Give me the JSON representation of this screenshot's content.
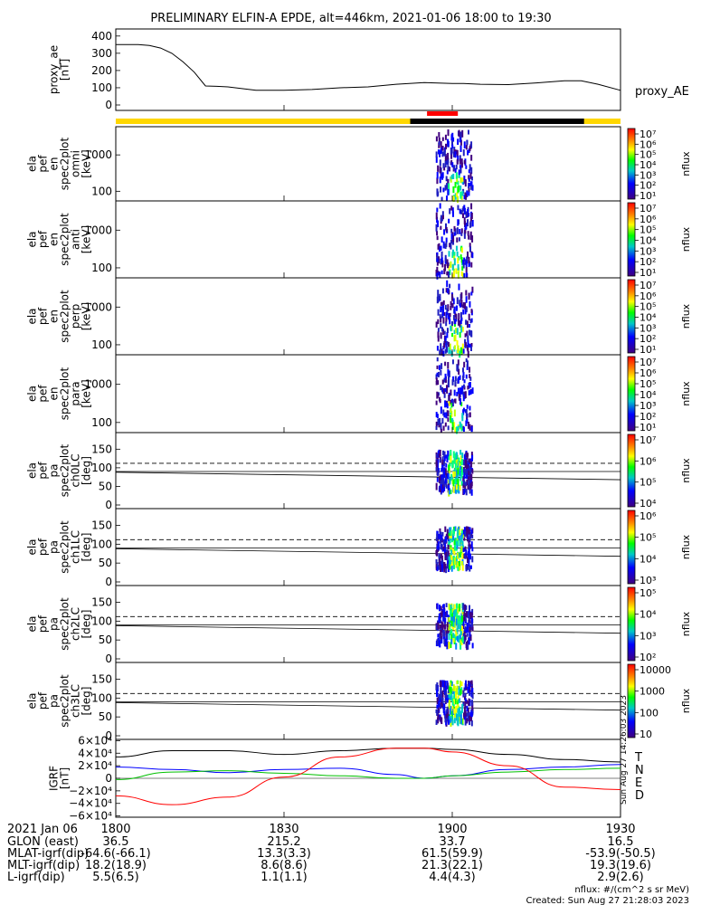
{
  "title": "PRELIMINARY ELFIN-A EPDE, alt=446km, 2021-01-06 18:00 to 19:30",
  "colors": {
    "yellow_bar": "#ffd700",
    "black_bar": "#000000",
    "red_bar": "#ff0000",
    "T": "#000000",
    "N": "#0000ff",
    "E": "#00c000",
    "D": "#ff0000"
  },
  "chart_data": [
    {
      "id": "proxy_ae",
      "type": "line",
      "ylabel": "proxy_ae\n[nT]",
      "series_label": "proxy_AE",
      "yticks": [
        "400",
        "300",
        "200",
        "100",
        "0"
      ],
      "ylim": [
        0,
        420
      ],
      "x_minutes": [
        0,
        2,
        4,
        6,
        8,
        10,
        12,
        14,
        16,
        18,
        20,
        25,
        30,
        35,
        40,
        45,
        50,
        55,
        60,
        62,
        65,
        70,
        75,
        80,
        83,
        86,
        90
      ],
      "values": [
        350,
        350,
        350,
        345,
        330,
        300,
        250,
        190,
        110,
        108,
        105,
        85,
        85,
        90,
        100,
        105,
        120,
        130,
        125,
        125,
        120,
        118,
        128,
        140,
        140,
        120,
        85
      ]
    },
    {
      "id": "spec_omni",
      "type": "heatmap",
      "ylabel": "ela\npef\nen\nspec2plot\nomni\n[keV]",
      "yticks": [
        "1000",
        "100"
      ],
      "colorbar": {
        "label": "nflux",
        "ticks": [
          "10⁷",
          "10⁶",
          "10⁵",
          "10⁴",
          "10³",
          "10²",
          "10¹"
        ]
      }
    },
    {
      "id": "spec_anti",
      "type": "heatmap",
      "ylabel": "ela\npef\nen\nspec2plot\nanti\n[keV]",
      "yticks": [
        "1000",
        "100"
      ],
      "colorbar": {
        "label": "nflux",
        "ticks": [
          "10⁷",
          "10⁶",
          "10⁵",
          "10⁴",
          "10³",
          "10²",
          "10¹"
        ]
      }
    },
    {
      "id": "spec_perp",
      "type": "heatmap",
      "ylabel": "ela\npef\nen\nspec2plot\nperp\n[keV]",
      "yticks": [
        "1000",
        "100"
      ],
      "colorbar": {
        "label": "nflux",
        "ticks": [
          "10⁷",
          "10⁶",
          "10⁵",
          "10⁴",
          "10³",
          "10²",
          "10¹"
        ]
      }
    },
    {
      "id": "spec_para",
      "type": "heatmap",
      "ylabel": "ela\npef\nen\nspec2plot\npara\n[keV]",
      "yticks": [
        "1000",
        "100"
      ],
      "colorbar": {
        "label": "nflux",
        "ticks": [
          "10⁷",
          "10⁶",
          "10⁵",
          "10⁴",
          "10³",
          "10²",
          "10¹"
        ]
      }
    },
    {
      "id": "pa_ch0",
      "type": "heatmap",
      "ylabel": "ela\npef\npa\nspec2plot\nch0LC\n[deg]",
      "yticks": [
        "150",
        "100",
        "50",
        "0"
      ],
      "colorbar": {
        "label": "nflux",
        "ticks": [
          "10⁷",
          "10⁶",
          "10⁵",
          "10⁴"
        ]
      }
    },
    {
      "id": "pa_ch1",
      "type": "heatmap",
      "ylabel": "ela\npef\npa\nspec2plot\nch1LC\n[deg]",
      "yticks": [
        "150",
        "100",
        "50",
        "0"
      ],
      "colorbar": {
        "label": "nflux",
        "ticks": [
          "10⁶",
          "10⁵",
          "10⁴",
          "10³"
        ]
      }
    },
    {
      "id": "pa_ch2",
      "type": "heatmap",
      "ylabel": "ela\npef\npa\nspec2plot\nch2LC\n[deg]",
      "yticks": [
        "150",
        "100",
        "50",
        "0"
      ],
      "colorbar": {
        "label": "nflux",
        "ticks": [
          "10⁵",
          "10⁴",
          "10³",
          "10²"
        ]
      }
    },
    {
      "id": "pa_ch3",
      "type": "heatmap",
      "ylabel": "ela\npef\npa\nspec2plot\nch3LC\n[deg]",
      "yticks": [
        "150",
        "100",
        "50",
        "0"
      ],
      "colorbar": {
        "label": "nflux",
        "ticks": [
          "10000",
          "1000",
          "100",
          "10"
        ]
      }
    },
    {
      "id": "igrf",
      "type": "line",
      "ylabel": "IGRF\n[nT]",
      "yticks": [
        "6×10⁴",
        "4×10⁴",
        "2×10⁴",
        "0",
        "−2×10⁴",
        "−4×10⁴",
        "−6×10⁴"
      ],
      "ylim": [
        -62000,
        62000
      ],
      "legend": [
        "T",
        "N",
        "E",
        "D"
      ],
      "stamp": "Sun Aug 27 14:26:03 2023",
      "x_minutes": [
        0,
        10,
        20,
        30,
        40,
        50,
        55,
        60,
        70,
        80,
        90
      ],
      "series": [
        {
          "name": "T",
          "values": [
            34000,
            44000,
            44000,
            38000,
            44000,
            48000,
            48000,
            46000,
            38000,
            30000,
            26000
          ]
        },
        {
          "name": "N",
          "values": [
            18000,
            14000,
            9000,
            14000,
            16000,
            6000,
            0,
            4000,
            14000,
            18000,
            22000
          ]
        },
        {
          "name": "E",
          "values": [
            -2000,
            10000,
            12000,
            8000,
            4000,
            0,
            0,
            4000,
            10000,
            14000,
            16000
          ]
        },
        {
          "name": "D",
          "values": [
            -28000,
            -42000,
            -30000,
            2000,
            34000,
            48000,
            48000,
            42000,
            20000,
            -14000,
            -18000
          ]
        }
      ]
    }
  ],
  "footer": {
    "date": "2021 Jan 06",
    "xticks": [
      "1800",
      "1830",
      "1900",
      "1930"
    ],
    "rows": [
      {
        "label": "GLON (east)",
        "values": [
          "36.5",
          "215.2",
          "33.7",
          "16.5"
        ]
      },
      {
        "label": "MLAT-igrf(dip)",
        "values": [
          "-64.6(-66.1)",
          "13.3(3.3)",
          "61.5(59.9)",
          "-53.9(-50.5)"
        ]
      },
      {
        "label": "MLT-igrf(dip)",
        "values": [
          "18.2(18.9)",
          "8.6(8.6)",
          "21.3(22.1)",
          "19.3(19.6)"
        ]
      },
      {
        "label": "L-igrf(dip)",
        "values": [
          "5.5(6.5)",
          "1.1(1.1)",
          "4.4(4.3)",
          "2.9(2.6)"
        ]
      }
    ],
    "units_note": "nflux: #/(cm^2 s sr MeV)",
    "created": "Created: Sun Aug 27 21:28:03 2023"
  }
}
